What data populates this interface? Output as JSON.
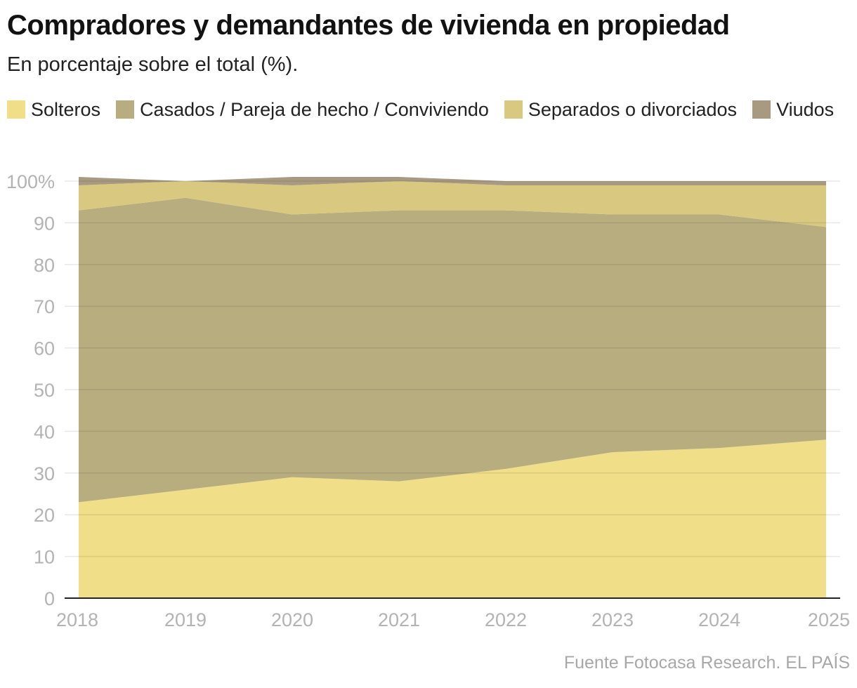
{
  "chart_data": {
    "type": "area",
    "stacked": true,
    "title": "Compradores y demandantes de vivienda en propiedad",
    "subtitle": "En porcentaje sobre el total (%).",
    "x": [
      "2018",
      "2019",
      "2020",
      "2021",
      "2022",
      "2023",
      "2024",
      "2025"
    ],
    "series": [
      {
        "name": "Solteros",
        "color": "#f0df88",
        "values": [
          23,
          26,
          29,
          28,
          31,
          35,
          36,
          38
        ]
      },
      {
        "name": "Casados / Pareja de hecho / Conviviendo",
        "color": "#b8ad7f",
        "values": [
          70,
          70,
          63,
          65,
          62,
          57,
          56,
          51
        ]
      },
      {
        "name": "Separados o divorciados",
        "color": "#d8c880",
        "values": [
          6,
          4,
          7,
          7,
          6,
          7,
          7,
          10
        ]
      },
      {
        "name": "Viudos",
        "color": "#a89a80",
        "values": [
          2,
          0,
          2,
          1,
          1,
          1,
          1,
          1
        ]
      }
    ],
    "ylim": [
      0,
      100
    ],
    "yticks": [
      "0",
      "10",
      "20",
      "30",
      "40",
      "50",
      "60",
      "70",
      "80",
      "90",
      "100%"
    ],
    "grid": true,
    "legend": "top",
    "source": "Fuente Fotocasa Research. EL PAÍS"
  }
}
